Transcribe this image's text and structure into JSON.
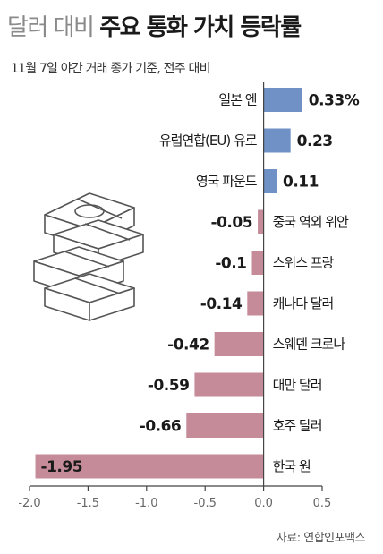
{
  "title_light": "달러 대비",
  "title_bold": "주요 통화 가치 등락률",
  "subtitle": "11월 7일 야간 거래 종가 기준, 전주 대비",
  "source": "자료: 연합인포맥스",
  "colors": {
    "positive": "#6f91c6",
    "negative": "#c58b98",
    "axis": "#444444"
  },
  "chart_data": {
    "type": "bar",
    "orientation": "horizontal",
    "categories": [
      "일본 엔",
      "유럽연합(EU) 유로",
      "영국 파운드",
      "중국 역외 위안",
      "스위스 프랑",
      "캐나다 달러",
      "스웨덴 크로나",
      "대만 달러",
      "호주 달러",
      "한국 원"
    ],
    "values": [
      0.33,
      0.23,
      0.11,
      -0.05,
      -0.1,
      -0.14,
      -0.42,
      -0.59,
      -0.66,
      -1.95
    ],
    "value_labels": [
      "0.33%",
      "0.23",
      "0.11",
      "-0.05",
      "-0.1",
      "-0.14",
      "-0.42",
      "-0.59",
      "-0.66",
      "-1.95"
    ],
    "xlim": [
      -2.0,
      0.5
    ],
    "xticks": [
      -2.0,
      -1.5,
      -1.0,
      -0.5,
      0.0,
      0.5
    ],
    "xtick_labels": [
      "-2.0",
      "-1.5",
      "-1.0",
      "-0.5",
      "0.0",
      "0.5"
    ],
    "xlabel": "",
    "ylabel": "",
    "grid": false
  }
}
